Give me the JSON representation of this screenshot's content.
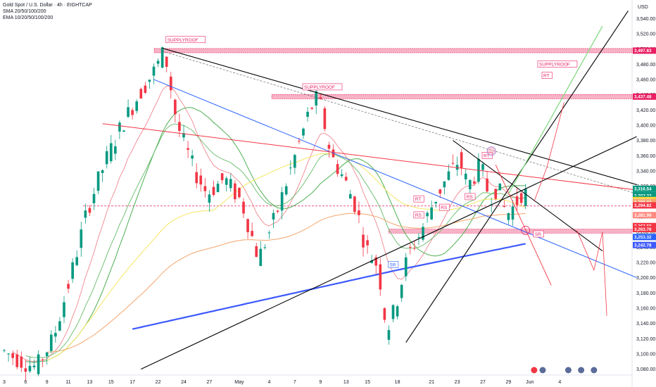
{
  "legend": {
    "line1": "Gold Spot / U.S. Dollar · 4h · EIGHTCAP",
    "line2": "SMA 20/50/100/200",
    "line3": "EMA 10/20/50/100/200"
  },
  "currency": "USD",
  "colors": {
    "up": "#089981",
    "down": "#f23645",
    "trend_black": "#000000",
    "trend_red": "#f23645",
    "trend_blue": "#2962ff",
    "zone_fill": "#f7b3c6",
    "zone_border": "#e91e63",
    "ma_green": "#4caf50",
    "ma_yellow": "#f5e663",
    "ma_orange": "#f6a56c",
    "ma_blue": "#3d5afe"
  },
  "chart_data": {
    "type": "candlestick",
    "symbol": "XAUUSD",
    "timeframe": "4h",
    "y_axis": {
      "min": 3075,
      "max": 3555,
      "ticks": [
        3080,
        3100,
        3120,
        3140,
        3160,
        3180,
        3200,
        3220,
        3240,
        3260,
        3280,
        3300,
        3320,
        3340,
        3360,
        3380,
        3400,
        3420,
        3440,
        3460,
        3480,
        3500,
        3520,
        3540
      ],
      "tick_labels": [
        "3,080.00",
        "3,100.00",
        "3,120.00",
        "3,140.00",
        "3,160.00",
        "3,180.00",
        "3,200.00",
        "3,220.00",
        "3,240.00",
        "3,260.00",
        "3,280.00",
        "3,300.00",
        "3,320.00",
        "3,340.00",
        "3,360.00",
        "3,380.00",
        "3,400.00",
        "3,420.00",
        "3,440.00",
        "3,460.00",
        "3,480.00",
        "3,500.00",
        "3,520.00",
        "3,540.00"
      ]
    },
    "x_axis": {
      "labels": [
        "3",
        "6",
        "9",
        "11",
        "13",
        "15",
        "17",
        "22",
        "24",
        "27",
        "May",
        "4",
        "7",
        "9",
        "13",
        "15",
        "18",
        "21",
        "23",
        "27",
        "29",
        "Jun",
        "4"
      ],
      "bar_index": [
        0,
        5,
        10,
        15,
        20,
        25,
        30,
        36,
        42,
        48,
        55,
        62,
        68,
        74,
        80,
        85,
        92,
        100,
        106,
        112,
        118,
        123,
        130
      ]
    },
    "price_labels": [
      {
        "value": 3497.83,
        "text": "3,497.83",
        "color": "#e91e63"
      },
      {
        "value": 3437.48,
        "text": "3,437.48",
        "color": "#e91e63"
      },
      {
        "value": 3316.54,
        "text": "3,316.54",
        "color": "#089981"
      },
      {
        "value": 3307.22,
        "text": "3,307.22",
        "color": "#089981"
      },
      {
        "value": 3303.13,
        "text": "3,303.13",
        "color": "#089981"
      },
      {
        "value": 3301.83,
        "text": "3,301.83",
        "color": "#f6d535"
      },
      {
        "value": 3299.02,
        "text": "3,299.02",
        "color": "#f6a56c"
      },
      {
        "value": 3294.82,
        "text": "3,294.82",
        "color": "#f23645"
      },
      {
        "value": 3281.99,
        "text": "3,281.99",
        "color": "#ff8a80"
      },
      {
        "value": 3267.69,
        "text": "3,267.69",
        "color": "#f23645"
      },
      {
        "value": 3263.76,
        "text": "3,263.76",
        "color": "#f23645"
      },
      {
        "value": 3253.32,
        "text": "3,253.32",
        "color": "#2962ff"
      },
      {
        "value": 3242.78,
        "text": "3,242.78",
        "color": "#3d5afe"
      }
    ],
    "countdown": "02:50:33",
    "zones": [
      {
        "label": "SUPPLYROOF",
        "value": 3497.83,
        "x0": 0.244,
        "x1": 1.0
      },
      {
        "label": "SUPPLYROOF",
        "value": 3437.48,
        "x0": 0.43,
        "x1": 1.0
      },
      {
        "label": "",
        "value": 3261,
        "x0": 0.615,
        "x1": 1.0
      }
    ],
    "annotations": [
      {
        "text": "SUPPLYROOF",
        "type": "zone-label"
      },
      {
        "text": "SUPPLYROOF",
        "type": "zone-label"
      },
      {
        "text": "SUPPLYROOF",
        "type": "zone-label"
      },
      {
        "text": "RT"
      },
      {
        "text": "RT"
      },
      {
        "text": "RT"
      },
      {
        "text": "RS"
      },
      {
        "text": "RS"
      },
      {
        "text": "RS"
      },
      {
        "text": "SR"
      },
      {
        "text": "SR"
      }
    ]
  }
}
